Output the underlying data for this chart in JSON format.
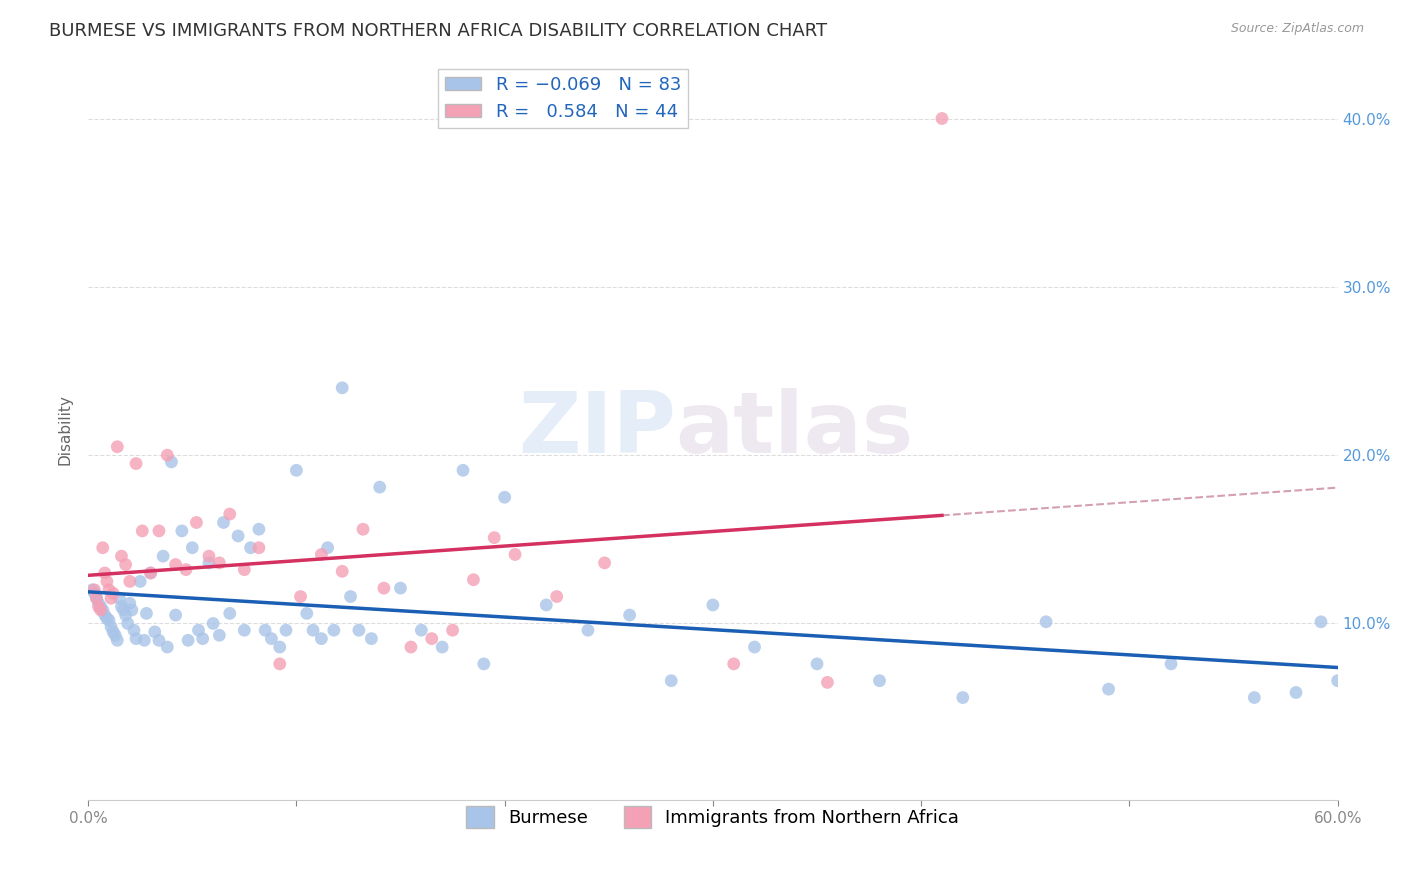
{
  "title": "BURMESE VS IMMIGRANTS FROM NORTHERN AFRICA DISABILITY CORRELATION CHART",
  "source": "Source: ZipAtlas.com",
  "ylabel": "Disability",
  "xlim": [
    0.0,
    0.6
  ],
  "ylim": [
    -0.005,
    0.435
  ],
  "x_ticks": [
    0.0,
    0.1,
    0.2,
    0.3,
    0.4,
    0.5,
    0.6
  ],
  "x_tick_labels": [
    "0.0%",
    "",
    "",
    "",
    "",
    "",
    "60.0%"
  ],
  "y_ticks": [
    0.1,
    0.2,
    0.3,
    0.4
  ],
  "y_tick_labels_right": [
    "10.0%",
    "20.0%",
    "30.0%",
    "40.0%"
  ],
  "burmese_color": "#a8c4e8",
  "northern_africa_color": "#f4a0b5",
  "burmese_line_color": "#1a5fb4",
  "northern_africa_line_color": "#d43060",
  "dashed_line_color": "#d4a0b0",
  "grid_color": "#dddddd",
  "r_burmese": -0.069,
  "n_burmese": 83,
  "r_northern_africa": 0.584,
  "n_northern_africa": 44,
  "legend_label_burmese": "Burmese",
  "legend_label_northern_africa": "Immigrants from Northern Africa",
  "watermark_zip": "ZIP",
  "watermark_atlas": "atlas",
  "burmese_x": [
    0.002,
    0.003,
    0.004,
    0.005,
    0.006,
    0.007,
    0.008,
    0.009,
    0.01,
    0.011,
    0.012,
    0.013,
    0.014,
    0.015,
    0.016,
    0.017,
    0.018,
    0.019,
    0.02,
    0.021,
    0.022,
    0.023,
    0.025,
    0.027,
    0.028,
    0.03,
    0.032,
    0.034,
    0.036,
    0.038,
    0.04,
    0.042,
    0.045,
    0.048,
    0.05,
    0.053,
    0.055,
    0.058,
    0.06,
    0.063,
    0.065,
    0.068,
    0.072,
    0.075,
    0.078,
    0.082,
    0.085,
    0.088,
    0.092,
    0.095,
    0.1,
    0.105,
    0.108,
    0.112,
    0.115,
    0.118,
    0.122,
    0.126,
    0.13,
    0.136,
    0.14,
    0.15,
    0.16,
    0.17,
    0.18,
    0.19,
    0.2,
    0.22,
    0.24,
    0.26,
    0.28,
    0.3,
    0.32,
    0.35,
    0.38,
    0.42,
    0.46,
    0.49,
    0.52,
    0.56,
    0.58,
    0.592,
    0.6
  ],
  "burmese_y": [
    0.12,
    0.118,
    0.115,
    0.112,
    0.11,
    0.108,
    0.105,
    0.103,
    0.102,
    0.098,
    0.095,
    0.093,
    0.09,
    0.115,
    0.11,
    0.108,
    0.105,
    0.1,
    0.112,
    0.108,
    0.096,
    0.091,
    0.125,
    0.09,
    0.106,
    0.13,
    0.095,
    0.09,
    0.14,
    0.086,
    0.196,
    0.105,
    0.155,
    0.09,
    0.145,
    0.096,
    0.091,
    0.136,
    0.1,
    0.093,
    0.16,
    0.106,
    0.152,
    0.096,
    0.145,
    0.156,
    0.096,
    0.091,
    0.086,
    0.096,
    0.191,
    0.106,
    0.096,
    0.091,
    0.145,
    0.096,
    0.24,
    0.116,
    0.096,
    0.091,
    0.181,
    0.121,
    0.096,
    0.086,
    0.191,
    0.076,
    0.175,
    0.111,
    0.096,
    0.105,
    0.066,
    0.111,
    0.086,
    0.076,
    0.066,
    0.056,
    0.101,
    0.061,
    0.076,
    0.056,
    0.059,
    0.101,
    0.066
  ],
  "northern_africa_x": [
    0.003,
    0.004,
    0.005,
    0.006,
    0.007,
    0.008,
    0.009,
    0.01,
    0.011,
    0.012,
    0.014,
    0.016,
    0.018,
    0.02,
    0.023,
    0.026,
    0.03,
    0.034,
    0.038,
    0.042,
    0.047,
    0.052,
    0.058,
    0.063,
    0.068,
    0.075,
    0.082,
    0.092,
    0.102,
    0.112,
    0.122,
    0.132,
    0.142,
    0.155,
    0.165,
    0.175,
    0.185,
    0.195,
    0.205,
    0.225,
    0.248,
    0.31,
    0.355,
    0.41
  ],
  "northern_africa_y": [
    0.12,
    0.115,
    0.11,
    0.108,
    0.145,
    0.13,
    0.125,
    0.12,
    0.115,
    0.118,
    0.205,
    0.14,
    0.135,
    0.125,
    0.195,
    0.155,
    0.13,
    0.155,
    0.2,
    0.135,
    0.132,
    0.16,
    0.14,
    0.136,
    0.165,
    0.132,
    0.145,
    0.076,
    0.116,
    0.141,
    0.131,
    0.156,
    0.121,
    0.086,
    0.091,
    0.096,
    0.126,
    0.151,
    0.141,
    0.116,
    0.136,
    0.076,
    0.065,
    0.4
  ],
  "burmese_marker_size": 85,
  "northern_africa_marker_size": 85,
  "background_color": "#ffffff",
  "title_fontsize": 13,
  "axis_label_fontsize": 11,
  "tick_fontsize": 11,
  "legend_fontsize": 13
}
